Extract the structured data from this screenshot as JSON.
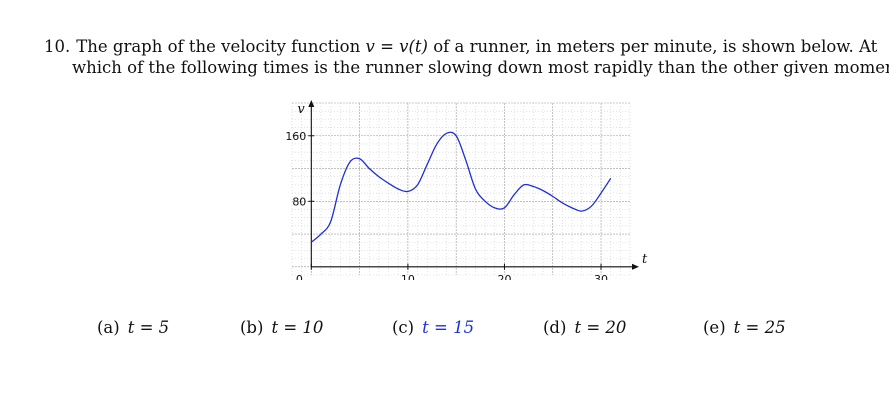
{
  "question": {
    "number": "10.",
    "line1_a": "The graph of the velocity function ",
    "line1_math": "v = v(t)",
    "line1_b": " of a runner, in meters per minute, is shown below. At",
    "line2": "which of the following times is the runner slowing down most rapidly than the other given moments?"
  },
  "chart_data": {
    "type": "line",
    "xlabel": "t",
    "ylabel": "v",
    "xlim": [
      -2,
      33
    ],
    "ylim": [
      -10,
      200
    ],
    "x_ticks": [
      0,
      10,
      20,
      30
    ],
    "x_tick_labels": [
      "0",
      "10",
      "20",
      "30"
    ],
    "y_ticks": [
      80,
      160
    ],
    "y_tick_labels": [
      "80",
      "160"
    ],
    "grid": true,
    "series": [
      {
        "x": [
          0,
          1,
          2,
          3,
          4,
          5,
          6,
          7,
          8,
          9,
          10,
          11,
          12,
          13,
          14,
          15,
          16,
          17,
          18,
          19,
          20,
          21,
          22,
          23,
          24,
          25,
          26,
          27,
          28,
          29,
          30,
          31
        ],
        "y": [
          30,
          40,
          55,
          100,
          128,
          132,
          120,
          110,
          102,
          95,
          92,
          100,
          125,
          150,
          163,
          160,
          130,
          95,
          80,
          72,
          72,
          88,
          100,
          98,
          93,
          86,
          78,
          72,
          68,
          74,
          90,
          108
        ],
        "color": "#1f2fd6"
      }
    ]
  },
  "choices": [
    {
      "label": "(a)",
      "value": "t = 5"
    },
    {
      "label": "(b)",
      "value": "t = 10"
    },
    {
      "label": "(c)",
      "value": "t = 15"
    },
    {
      "label": "(d)",
      "value": "t = 20"
    },
    {
      "label": "(e)",
      "value": "t = 25"
    }
  ]
}
